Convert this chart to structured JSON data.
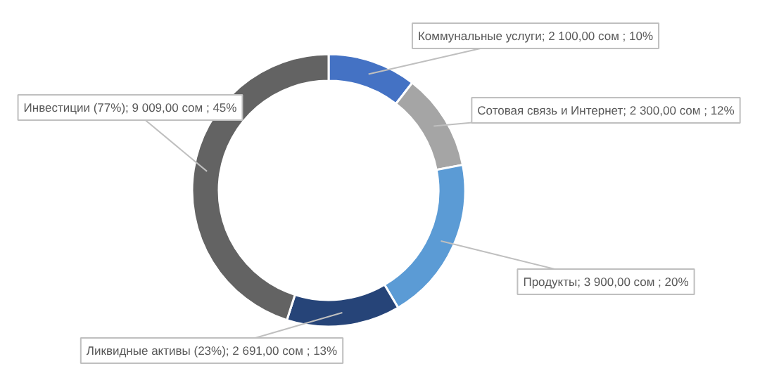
{
  "chart_data": {
    "type": "donut",
    "categories": [
      "Коммунальные услуги",
      "Сотовая связь и Интернет",
      "Продукты",
      "Ликвидные активы (23%)",
      "Инвестиции (77%)"
    ],
    "values": [
      2100,
      2300,
      3900,
      2691,
      9009
    ],
    "colors": [
      "#4472c4",
      "#a5a5a5",
      "#5b9bd5",
      "#264478",
      "#636363"
    ],
    "value_labels": [
      "2 100,00 сом ; 10%",
      "2 300,00 сом ; 12%",
      "3 900,00 сом ; 20%",
      "2 691,00 сом ; 13%",
      "9 009,00 сом ; 45%"
    ]
  }
}
